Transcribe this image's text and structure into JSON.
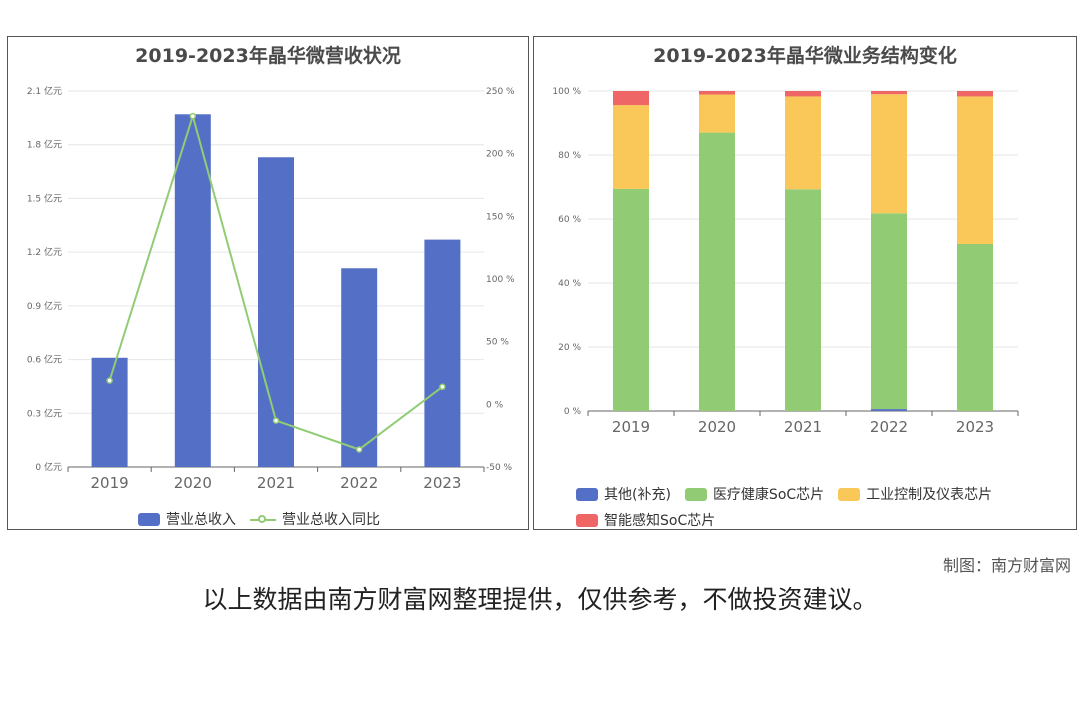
{
  "credit": "制图：南方财富网",
  "disclaimer": "以上数据由南方财富网整理提供，仅供参考，不做投资建议。",
  "chart_data": [
    {
      "type": "bar",
      "title": "2019-2023年晶华微营收状况",
      "categories": [
        "2019",
        "2020",
        "2021",
        "2022",
        "2023"
      ],
      "series": [
        {
          "name": "营业总收入",
          "type": "bar",
          "axis": "left",
          "values": [
            0.61,
            1.97,
            1.73,
            1.11,
            1.27
          ],
          "color": "#5470c6"
        },
        {
          "name": "营业总收入同比",
          "type": "line",
          "axis": "right",
          "values": [
            19,
            230,
            -13,
            -36,
            14
          ],
          "color": "#91cc75"
        }
      ],
      "y_left": {
        "ticks": [
          "0 亿元",
          "0.3 亿元",
          "0.6 亿元",
          "0.9 亿元",
          "1.2 亿元",
          "1.5 亿元",
          "1.8 亿元",
          "2.1 亿元"
        ],
        "min": 0,
        "max": 2.1
      },
      "y_right": {
        "ticks": [
          "-50 %",
          "0 %",
          "50 %",
          "100 %",
          "150 %",
          "200 %",
          "250 %"
        ],
        "min": -50,
        "max": 250
      },
      "legend": "bottom"
    },
    {
      "type": "bar",
      "stacked": true,
      "title": "2019-2023年晶华微业务结构变化",
      "categories": [
        "2019",
        "2020",
        "2021",
        "2022",
        "2023"
      ],
      "series": [
        {
          "name": "其他(补充)",
          "values": [
            0,
            0,
            0,
            0.6,
            0
          ],
          "color": "#5470c6"
        },
        {
          "name": "医疗健康SoC芯片",
          "values": [
            69.4,
            87,
            69.3,
            61.2,
            52.2
          ],
          "color": "#91cc75"
        },
        {
          "name": "工业控制及仪表芯片",
          "values": [
            26.2,
            11.9,
            29,
            37.2,
            46.1
          ],
          "color": "#fac858"
        },
        {
          "name": "智能感知SoC芯片",
          "values": [
            4.4,
            1.1,
            1.7,
            1,
            1.7
          ],
          "color": "#ee6666"
        }
      ],
      "y": {
        "ticks": [
          "0 %",
          "20 %",
          "40 %",
          "60 %",
          "80 %",
          "100 %"
        ],
        "min": 0,
        "max": 100
      },
      "legend": "bottom"
    }
  ]
}
